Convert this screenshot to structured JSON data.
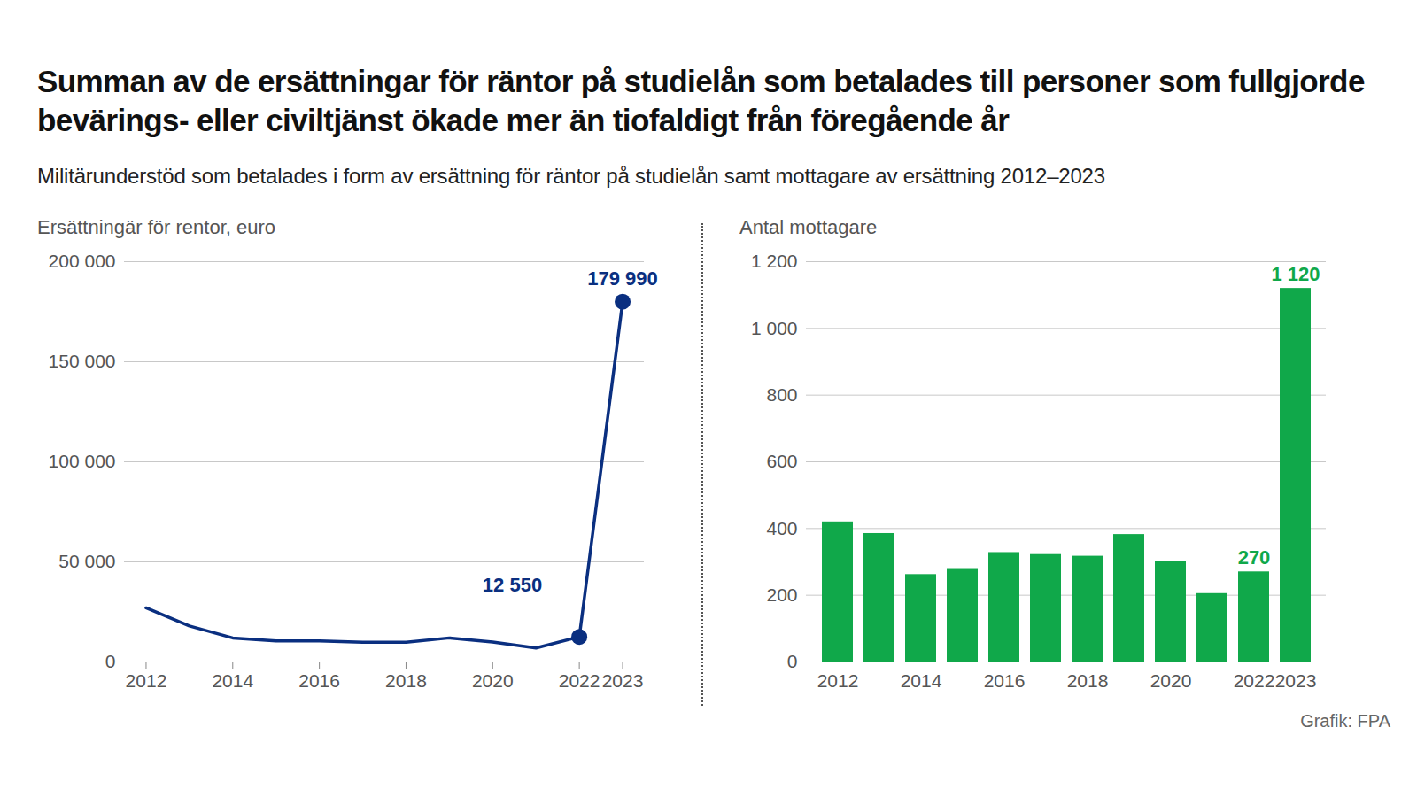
{
  "title": "Summan av de ersättningar för räntor på studielån som betalades till personer som fullgjorde bevärings- eller civiltjänst ökade mer än tiofaldigt från föregående år",
  "subtitle": "Militärunderstöd som betalades i form av ersättning för räntor på studielån samt mottagare av ersättning 2012–2023",
  "source": "Grafik: FPA",
  "chart_data": [
    {
      "type": "line",
      "y_label": "Ersättningär för rentor, euro",
      "x": [
        2012,
        2013,
        2014,
        2015,
        2016,
        2017,
        2018,
        2019,
        2020,
        2021,
        2022,
        2023
      ],
      "values": [
        27000,
        18000,
        12000,
        10500,
        10500,
        9800,
        9800,
        12000,
        10000,
        7000,
        12550,
        179990
      ],
      "value_labels": [
        null,
        null,
        null,
        null,
        null,
        null,
        null,
        null,
        null,
        null,
        "12 550",
        "179 990"
      ],
      "color": "#0a2f80",
      "xlim": [
        2011.5,
        2023.5
      ],
      "xticks": [
        2012,
        2014,
        2016,
        2018,
        2020,
        2022,
        2023
      ],
      "ylim": [
        0,
        200000
      ],
      "yticks": [
        0,
        {
          "value": 50000,
          "label": "50 000"
        },
        {
          "value": 100000,
          "label": "100 000"
        },
        {
          "value": 150000,
          "label": "150 000"
        },
        {
          "value": 200000,
          "label": "200 000"
        }
      ],
      "grid": true
    },
    {
      "type": "bar",
      "y_label": "Antal mottagare",
      "categories": [
        "2012",
        null,
        "2014",
        null,
        "2016",
        null,
        "2018",
        null,
        "2020",
        null,
        "2022",
        "2023"
      ],
      "values": [
        420,
        385,
        262,
        280,
        328,
        322,
        317,
        382,
        300,
        205,
        270,
        1120
      ],
      "value_labels": [
        null,
        null,
        null,
        null,
        null,
        null,
        null,
        null,
        null,
        null,
        "270",
        "1 120"
      ],
      "color": "#10a84a",
      "ylim": [
        0,
        1200
      ],
      "yticks": [
        0,
        200,
        400,
        600,
        800,
        {
          "value": 1000,
          "label": "1 000"
        },
        {
          "value": 1200,
          "label": "1 200"
        }
      ],
      "grid": true
    }
  ]
}
